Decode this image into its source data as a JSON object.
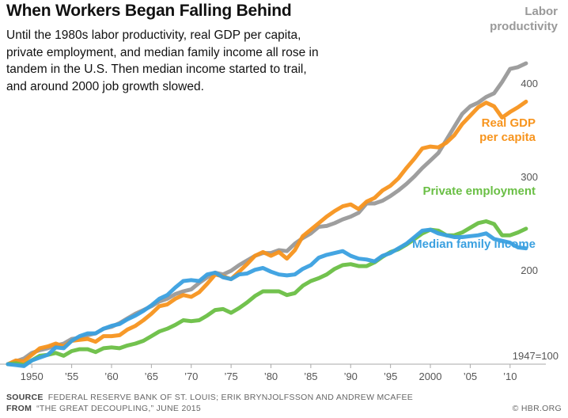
{
  "header": {
    "title": "When Workers Began Falling Behind",
    "subtitle": "Until the 1980s labor productivity, real GDP per capita, private employment, and median family income all rose in tandem in the U.S. Then median income started to trail, and around 2000 job growth slowed."
  },
  "footer": {
    "source_label": "SOURCE",
    "source_text": "FEDERAL RESERVE BANK OF ST. LOUIS; ERIK BRYNJOLFSSON AND ANDREW MCAFEE",
    "from_label": "FROM",
    "from_text": "“THE GREAT DECOUPLING,” JUNE 2015",
    "copyright": "© HBR.ORG"
  },
  "chart_data": {
    "type": "line",
    "title": "When Workers Began Falling Behind",
    "xlabel": "",
    "ylabel": "",
    "xlim": [
      1947,
      2013
    ],
    "ylim": [
      100,
      430
    ],
    "x_ticks": [
      1950,
      1955,
      1960,
      1965,
      1970,
      1975,
      1980,
      1985,
      1990,
      1995,
      2000,
      2005,
      2010
    ],
    "x_tick_labels": [
      "1950",
      "’55",
      "’60",
      "’65",
      "’70",
      "’75",
      "’80",
      "’85",
      "’90",
      "’95",
      "2000",
      "’05",
      "’10"
    ],
    "y_ticks": [
      200,
      300,
      400
    ],
    "y_tick_labels": [
      "200",
      "300",
      "400"
    ],
    "baseline_label": "1947=100",
    "grid": false,
    "legend": "inline-labels",
    "series": [
      {
        "name": "Labor productivity",
        "label_lines": [
          "Labor",
          "productivity"
        ],
        "color": "#999999",
        "x": [
          1947,
          1948,
          1949,
          1950,
          1951,
          1952,
          1953,
          1954,
          1955,
          1956,
          1957,
          1958,
          1959,
          1960,
          1961,
          1962,
          1963,
          1964,
          1965,
          1966,
          1967,
          1968,
          1969,
          1970,
          1971,
          1972,
          1973,
          1974,
          1975,
          1976,
          1977,
          1978,
          1979,
          1980,
          1981,
          1982,
          1983,
          1984,
          1985,
          1986,
          1987,
          1988,
          1989,
          1990,
          1991,
          1992,
          1993,
          1994,
          1995,
          1996,
          1997,
          1998,
          1999,
          2000,
          2001,
          2002,
          2003,
          2004,
          2005,
          2006,
          2007,
          2008,
          2009,
          2010,
          2011,
          2012
        ],
        "values": [
          100,
          103,
          106,
          112,
          115,
          117,
          120,
          122,
          127,
          128,
          131,
          133,
          138,
          140,
          144,
          149,
          154,
          158,
          162,
          167,
          170,
          175,
          178,
          180,
          187,
          193,
          198,
          196,
          200,
          206,
          211,
          216,
          219,
          219,
          222,
          221,
          229,
          235,
          240,
          247,
          248,
          251,
          255,
          258,
          262,
          272,
          272,
          275,
          280,
          286,
          293,
          301,
          310,
          318,
          326,
          340,
          354,
          368,
          376,
          380,
          386,
          390,
          402,
          416,
          418,
          422
        ]
      },
      {
        "name": "Real GDP per capita",
        "label_lines": [
          "Real GDP",
          "per capita"
        ],
        "color": "#f7941d",
        "x": [
          1947,
          1948,
          1949,
          1950,
          1951,
          1952,
          1953,
          1954,
          1955,
          1956,
          1957,
          1958,
          1959,
          1960,
          1961,
          1962,
          1963,
          1964,
          1965,
          1966,
          1967,
          1968,
          1969,
          1970,
          1971,
          1972,
          1973,
          1974,
          1975,
          1976,
          1977,
          1978,
          1979,
          1980,
          1981,
          1982,
          1983,
          1984,
          1985,
          1986,
          1987,
          1988,
          1989,
          1990,
          1991,
          1992,
          1993,
          1994,
          1995,
          1996,
          1997,
          1998,
          1999,
          2000,
          2001,
          2002,
          2003,
          2004,
          2005,
          2006,
          2007,
          2008,
          2009,
          2010,
          2011,
          2012
        ],
        "values": [
          100,
          104,
          103,
          110,
          117,
          119,
          122,
          119,
          125,
          126,
          127,
          124,
          130,
          130,
          131,
          137,
          141,
          147,
          154,
          162,
          164,
          170,
          174,
          172,
          177,
          186,
          196,
          194,
          191,
          199,
          207,
          216,
          220,
          216,
          220,
          213,
          222,
          237,
          244,
          251,
          258,
          264,
          269,
          271,
          266,
          274,
          278,
          286,
          291,
          299,
          310,
          320,
          331,
          333,
          332,
          337,
          345,
          357,
          366,
          375,
          380,
          376,
          364,
          370,
          375,
          381
        ]
      },
      {
        "name": "Private employment",
        "label_lines": [
          "Private employment"
        ],
        "color": "#6abf45",
        "x": [
          1947,
          1948,
          1949,
          1950,
          1951,
          1952,
          1953,
          1954,
          1955,
          1956,
          1957,
          1958,
          1959,
          1960,
          1961,
          1962,
          1963,
          1964,
          1965,
          1966,
          1967,
          1968,
          1969,
          1970,
          1971,
          1972,
          1973,
          1974,
          1975,
          1976,
          1977,
          1978,
          1979,
          1980,
          1981,
          1982,
          1983,
          1984,
          1985,
          1986,
          1987,
          1988,
          1989,
          1990,
          1991,
          1992,
          1993,
          1994,
          1995,
          1996,
          1997,
          1998,
          1999,
          2000,
          2001,
          2002,
          2003,
          2004,
          2005,
          2006,
          2007,
          2008,
          2009,
          2010,
          2011,
          2012
        ],
        "values": [
          100,
          101,
          99,
          104,
          109,
          110,
          112,
          109,
          114,
          116,
          116,
          113,
          117,
          118,
          117,
          120,
          122,
          125,
          130,
          135,
          138,
          142,
          147,
          146,
          147,
          152,
          158,
          159,
          155,
          160,
          166,
          173,
          178,
          178,
          178,
          174,
          176,
          184,
          189,
          192,
          196,
          202,
          206,
          207,
          205,
          205,
          209,
          215,
          220,
          223,
          228,
          234,
          240,
          244,
          243,
          238,
          238,
          241,
          246,
          251,
          253,
          250,
          238,
          238,
          241,
          245
        ]
      },
      {
        "name": "Median family income",
        "label_lines": [
          "Median family income"
        ],
        "color": "#3aa0e0",
        "x": [
          1947,
          1948,
          1949,
          1950,
          1951,
          1952,
          1953,
          1954,
          1955,
          1956,
          1957,
          1958,
          1959,
          1960,
          1961,
          1962,
          1963,
          1964,
          1965,
          1966,
          1967,
          1968,
          1969,
          1970,
          1971,
          1972,
          1973,
          1974,
          1975,
          1976,
          1977,
          1978,
          1979,
          1980,
          1981,
          1982,
          1983,
          1984,
          1985,
          1986,
          1987,
          1988,
          1989,
          1990,
          1991,
          1992,
          1993,
          1994,
          1995,
          1996,
          1997,
          1998,
          1999,
          2000,
          2001,
          2002,
          2003,
          2004,
          2005,
          2006,
          2007,
          2008,
          2009,
          2010,
          2011,
          2012
        ],
        "values": [
          100,
          99,
          98,
          104,
          107,
          110,
          118,
          117,
          125,
          130,
          133,
          133,
          138,
          141,
          143,
          148,
          152,
          157,
          163,
          170,
          174,
          182,
          189,
          190,
          189,
          196,
          198,
          193,
          191,
          196,
          197,
          201,
          203,
          199,
          196,
          195,
          196,
          202,
          206,
          214,
          217,
          219,
          221,
          216,
          213,
          212,
          210,
          216,
          219,
          224,
          229,
          236,
          243,
          244,
          240,
          238,
          236,
          236,
          237,
          238,
          240,
          234,
          232,
          230,
          225,
          224
        ]
      }
    ]
  }
}
